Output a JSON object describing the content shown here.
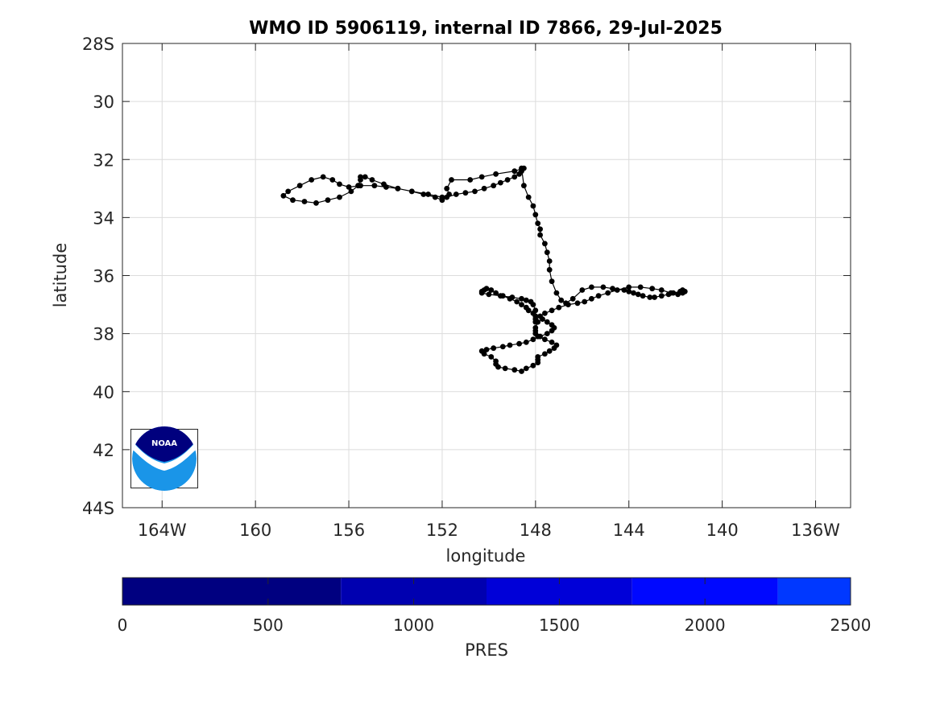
{
  "chart_data": {
    "type": "scatter",
    "title": "WMO ID 5906119, internal ID 7866, 29-Jul-2025",
    "xlabel": "longitude",
    "ylabel": "latitude",
    "xlim": [
      -165.7,
      -134.5
    ],
    "ylim": [
      -44,
      -28
    ],
    "grid": true,
    "x_ticks": [
      {
        "value": -164,
        "label": "164W"
      },
      {
        "value": -160,
        "label": "160"
      },
      {
        "value": -156,
        "label": "156"
      },
      {
        "value": -152,
        "label": "152"
      },
      {
        "value": -148,
        "label": "148"
      },
      {
        "value": -144,
        "label": "144"
      },
      {
        "value": -140,
        "label": "140"
      },
      {
        "value": -136,
        "label": "136W"
      }
    ],
    "y_ticks": [
      {
        "value": -28,
        "label": "28S"
      },
      {
        "value": -30,
        "label": "30"
      },
      {
        "value": -32,
        "label": "32"
      },
      {
        "value": -34,
        "label": "34"
      },
      {
        "value": -36,
        "label": "36"
      },
      {
        "value": -38,
        "label": "38"
      },
      {
        "value": -40,
        "label": "40"
      },
      {
        "value": -42,
        "label": "42"
      },
      {
        "value": -44,
        "label": "44S"
      }
    ],
    "series": [
      {
        "color": "#000000",
        "x": [
          -148.5,
          -148.9,
          -149.7,
          -150.3,
          -150.8,
          -151.6,
          -151.8,
          -151.7,
          -152.0,
          -152.6,
          -153.3,
          -153.9,
          -154.4,
          -154.9,
          -155.5,
          -156.0,
          -156.4,
          -156.7,
          -157.1,
          -157.6,
          -158.1,
          -158.6,
          -158.8,
          -158.4,
          -157.9,
          -157.4,
          -156.9,
          -156.4,
          -155.9,
          -155.6,
          -155.5,
          -155.5,
          -155.3,
          -155.0,
          -154.5,
          -153.9,
          -153.3,
          -152.8,
          -152.3,
          -152.0,
          -151.8,
          -151.4,
          -151.0,
          -150.6,
          -150.2,
          -149.8,
          -149.5,
          -149.2,
          -148.9,
          -148.7,
          -148.6,
          -148.6,
          -148.5,
          -148.3,
          -148.1,
          -148.0,
          -147.9,
          -147.8,
          -147.8,
          -147.6,
          -147.5,
          -147.4,
          -147.4,
          -147.3,
          -147.1,
          -146.9,
          -146.7,
          -146.4,
          -146.0,
          -145.6,
          -145.1,
          -144.7,
          -144.2,
          -144.0,
          -143.8,
          -143.6,
          -143.4,
          -143.1,
          -142.9,
          -142.6,
          -142.3,
          -142.1,
          -141.8,
          -141.7,
          -141.6,
          -141.7,
          -141.9,
          -142.2,
          -142.6,
          -143.0,
          -143.5,
          -144.0,
          -144.5,
          -144.9,
          -145.3,
          -145.6,
          -145.9,
          -146.2,
          -146.6,
          -147.0,
          -147.3,
          -147.6,
          -147.8,
          -147.7,
          -147.5,
          -147.3,
          -147.2,
          -147.3,
          -147.5,
          -147.8,
          -148.1,
          -148.4,
          -148.7,
          -149.1,
          -149.4,
          -149.8,
          -150.1,
          -150.3,
          -150.2,
          -149.9,
          -149.7,
          -149.7,
          -149.6,
          -149.3,
          -148.9,
          -148.6,
          -148.4,
          -148.1,
          -147.9,
          -147.9,
          -147.9,
          -147.6,
          -147.4,
          -147.2,
          -147.1,
          -147.3,
          -147.6,
          -147.9,
          -148.0,
          -148.0,
          -148.0,
          -147.9,
          -148.0,
          -148.0,
          -148.1,
          -148.2,
          -148.4,
          -148.6,
          -149.0,
          -149.5,
          -150.0,
          -150.3,
          -150.3,
          -150.2,
          -150.1,
          -149.9,
          -149.7,
          -149.4,
          -149.1,
          -148.8,
          -148.6,
          -148.4,
          -148.3,
          -148.1,
          -148.0,
          -148.0,
          -148.0
        ],
        "y": [
          -32.3,
          -32.4,
          -32.5,
          -32.6,
          -32.7,
          -32.7,
          -33.0,
          -33.2,
          -33.3,
          -33.2,
          -33.1,
          -33.0,
          -32.95,
          -32.9,
          -32.9,
          -32.95,
          -32.85,
          -32.7,
          -32.6,
          -32.7,
          -32.9,
          -33.1,
          -33.25,
          -33.4,
          -33.45,
          -33.5,
          -33.4,
          -33.3,
          -33.1,
          -32.9,
          -32.7,
          -32.6,
          -32.6,
          -32.7,
          -32.85,
          -33.0,
          -33.1,
          -33.2,
          -33.3,
          -33.4,
          -33.3,
          -33.2,
          -33.15,
          -33.1,
          -33.0,
          -32.9,
          -32.8,
          -32.7,
          -32.6,
          -32.5,
          -32.4,
          -32.3,
          -32.9,
          -33.3,
          -33.6,
          -33.9,
          -34.2,
          -34.4,
          -34.6,
          -34.9,
          -35.2,
          -35.5,
          -35.8,
          -36.2,
          -36.6,
          -36.85,
          -36.95,
          -36.8,
          -36.5,
          -36.4,
          -36.4,
          -36.45,
          -36.5,
          -36.55,
          -36.6,
          -36.65,
          -36.7,
          -36.75,
          -36.75,
          -36.7,
          -36.65,
          -36.6,
          -36.55,
          -36.5,
          -36.55,
          -36.6,
          -36.65,
          -36.6,
          -36.5,
          -36.45,
          -36.4,
          -36.4,
          -36.5,
          -36.6,
          -36.7,
          -36.8,
          -36.9,
          -36.95,
          -37.0,
          -37.1,
          -37.2,
          -37.3,
          -37.4,
          -37.5,
          -37.6,
          -37.7,
          -37.8,
          -37.9,
          -38.0,
          -38.1,
          -38.2,
          -38.3,
          -38.35,
          -38.4,
          -38.45,
          -38.5,
          -38.55,
          -38.6,
          -38.7,
          -38.8,
          -38.95,
          -39.05,
          -39.15,
          -39.2,
          -39.25,
          -39.3,
          -39.2,
          -39.1,
          -39.0,
          -38.9,
          -38.8,
          -38.7,
          -38.6,
          -38.5,
          -38.4,
          -38.3,
          -38.2,
          -38.1,
          -38.0,
          -37.9,
          -37.8,
          -37.6,
          -37.4,
          -37.2,
          -37.0,
          -36.9,
          -36.85,
          -36.8,
          -36.75,
          -36.7,
          -36.65,
          -36.6,
          -36.55,
          -36.5,
          -36.45,
          -36.5,
          -36.6,
          -36.7,
          -36.8,
          -36.9,
          -37.0,
          -37.1,
          -37.2,
          -37.3,
          -37.4,
          -37.5,
          -37.6
        ]
      }
    ]
  },
  "colorbar": {
    "label": "PRES",
    "min": 0,
    "max": 2500,
    "ticks": [
      0,
      500,
      1000,
      1500,
      2000,
      2500
    ],
    "bands": [
      {
        "from": 0,
        "to": 750,
        "color": "#000080"
      },
      {
        "from": 750,
        "to": 1250,
        "color": "#0000B0"
      },
      {
        "from": 1250,
        "to": 1750,
        "color": "#0000D8"
      },
      {
        "from": 1750,
        "to": 2250,
        "color": "#0008FF"
      },
      {
        "from": 2250,
        "to": 2500,
        "color": "#0038FF"
      }
    ]
  },
  "logo": {
    "text": "NOAA",
    "dark_color": "#00007E",
    "light_color": "#1A95E8"
  }
}
